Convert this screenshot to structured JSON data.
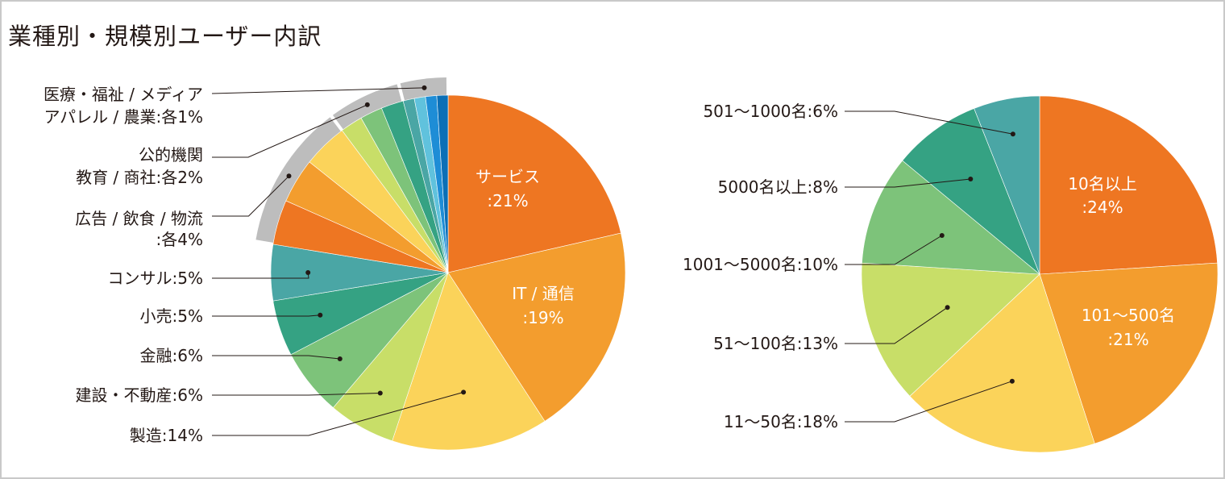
{
  "title": "業種別・規模別ユーザー内訳",
  "colors": {
    "orange_dark": "#EE7622",
    "orange": "#F39D2E",
    "yellow": "#FBD35A",
    "lime": "#C8DE68",
    "light_green": "#7DC37A",
    "green": "#35A283",
    "teal": "#4AA6A5",
    "grey_bracket": "#BDBDBD"
  },
  "chart_data": [
    {
      "type": "pie",
      "name": "業種別",
      "slices": [
        {
          "label": "サービス",
          "value": 21,
          "color": "#EE7622",
          "label_lines": [
            "サービス",
            ":21%"
          ],
          "label_pos": "inside"
        },
        {
          "label": "IT / 通信",
          "value": 19,
          "color": "#F39D2E",
          "label_lines": [
            "IT / 通信",
            ":19%"
          ],
          "label_pos": "inside"
        },
        {
          "label": "製造",
          "value": 14,
          "color": "#FBD35A",
          "label_lines": [
            "製造:14%"
          ],
          "label_pos": "outside"
        },
        {
          "label": "建設・不動産",
          "value": 6,
          "color": "#C8DE68",
          "label_lines": [
            "建設・不動産:6%"
          ],
          "label_pos": "outside"
        },
        {
          "label": "金融",
          "value": 6,
          "color": "#7DC37A",
          "label_lines": [
            "金融:6%"
          ],
          "label_pos": "outside"
        },
        {
          "label": "小売",
          "value": 5,
          "color": "#35A283",
          "label_lines": [
            "小売:5%"
          ],
          "label_pos": "outside"
        },
        {
          "label": "コンサル",
          "value": 5,
          "color": "#4AA6A5",
          "label_lines": [
            "コンサル:5%"
          ],
          "label_pos": "outside"
        },
        {
          "label": "広告",
          "value": 4,
          "color": "#EE7622",
          "group": "広告 / 飲食 / 物流"
        },
        {
          "label": "飲食",
          "value": 4,
          "color": "#F39D2E",
          "group": "広告 / 飲食 / 物流"
        },
        {
          "label": "物流",
          "value": 4,
          "color": "#FBD35A",
          "group": "広告 / 飲食 / 物流"
        },
        {
          "label": "公的機関",
          "value": 2,
          "color": "#C8DE68",
          "group": "公的機関 教育 / 商社"
        },
        {
          "label": "教育",
          "value": 2,
          "color": "#7DC37A",
          "group": "公的機関 教育 / 商社"
        },
        {
          "label": "商社",
          "value": 2,
          "color": "#35A283",
          "group": "公的機関 教育 / 商社"
        },
        {
          "label": "医療・福祉",
          "value": 1,
          "color": "#4AA6A5",
          "group": "医療・福祉 / メディア アパレル / 農業"
        },
        {
          "label": "メディア",
          "value": 1,
          "color": "#60C2DD",
          "group": "医療・福祉 / メディア アパレル / 農業"
        },
        {
          "label": "アパレル",
          "value": 1,
          "color": "#1E8DD6",
          "group": "医療・福祉 / メディア アパレル / 農業"
        },
        {
          "label": "農業",
          "value": 1,
          "color": "#0B6FB6",
          "group": "医療・福祉 / メディア アパレル / 農業"
        }
      ],
      "group_labels": [
        {
          "group": "広告 / 飲食 / 物流",
          "lines": [
            "広告 / 飲食 / 物流",
            ":各4%"
          ]
        },
        {
          "group": "公的機関 教育 / 商社",
          "lines": [
            "公的機関",
            "教育 / 商社:各2%"
          ]
        },
        {
          "group": "医療・福祉 / メディア アパレル / 農業",
          "lines": [
            "医療・福祉 / メディア",
            "アパレル / 農業:各1%"
          ]
        }
      ]
    },
    {
      "type": "pie",
      "name": "規模別",
      "slices": [
        {
          "label": "10名以上",
          "value": 24,
          "color": "#EE7622",
          "label_lines": [
            "10名以上",
            ":24%"
          ],
          "label_pos": "inside"
        },
        {
          "label": "101〜500名",
          "value": 21,
          "color": "#F39D2E",
          "label_lines": [
            "101〜500名",
            ":21%"
          ],
          "label_pos": "inside"
        },
        {
          "label": "11〜50名",
          "value": 18,
          "color": "#FBD35A",
          "label_lines": [
            "11〜50名:18%"
          ],
          "label_pos": "outside"
        },
        {
          "label": "51〜100名",
          "value": 13,
          "color": "#C8DE68",
          "label_lines": [
            "51〜100名:13%"
          ],
          "label_pos": "outside"
        },
        {
          "label": "1001〜5000名",
          "value": 10,
          "color": "#7DC37A",
          "label_lines": [
            "1001〜5000名:10%"
          ],
          "label_pos": "outside"
        },
        {
          "label": "5000名以上",
          "value": 8,
          "color": "#35A283",
          "label_lines": [
            "5000名以上:8%"
          ],
          "label_pos": "outside"
        },
        {
          "label": "501〜1000名",
          "value": 6,
          "color": "#4AA6A5",
          "label_lines": [
            "501〜1000名:6%"
          ],
          "label_pos": "outside"
        }
      ]
    }
  ]
}
